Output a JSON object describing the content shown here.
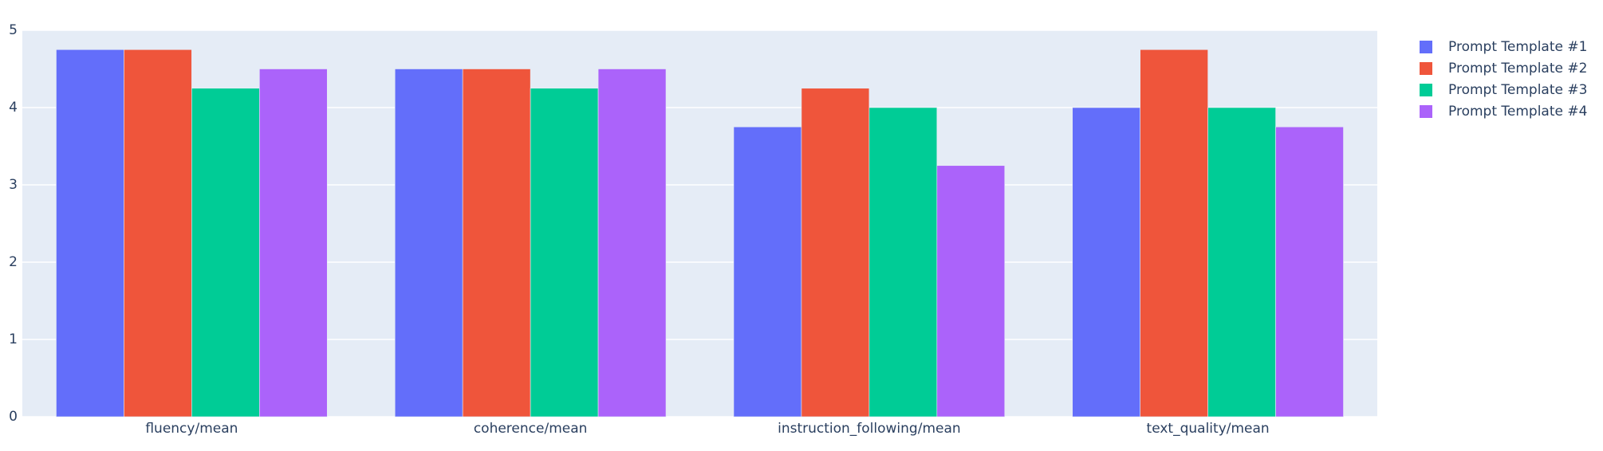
{
  "chart_data": {
    "type": "bar",
    "categories": [
      "fluency/mean",
      "coherence/mean",
      "instruction_following/mean",
      "text_quality/mean"
    ],
    "series": [
      {
        "name": "Prompt Template #1",
        "color": "#636efa",
        "values": [
          4.75,
          4.5,
          3.75,
          4.0
        ]
      },
      {
        "name": "Prompt Template #2",
        "color": "#ef553b",
        "values": [
          4.75,
          4.5,
          4.25,
          4.75
        ]
      },
      {
        "name": "Prompt Template #3",
        "color": "#00cc96",
        "values": [
          4.25,
          4.25,
          4.0,
          4.0
        ]
      },
      {
        "name": "Prompt Template #4",
        "color": "#ab63fa",
        "values": [
          4.5,
          4.5,
          3.25,
          3.75
        ]
      }
    ],
    "ylim": [
      0,
      5
    ],
    "yticks": [
      0,
      1,
      2,
      3,
      4,
      5
    ],
    "grid": true,
    "legend": "right"
  }
}
